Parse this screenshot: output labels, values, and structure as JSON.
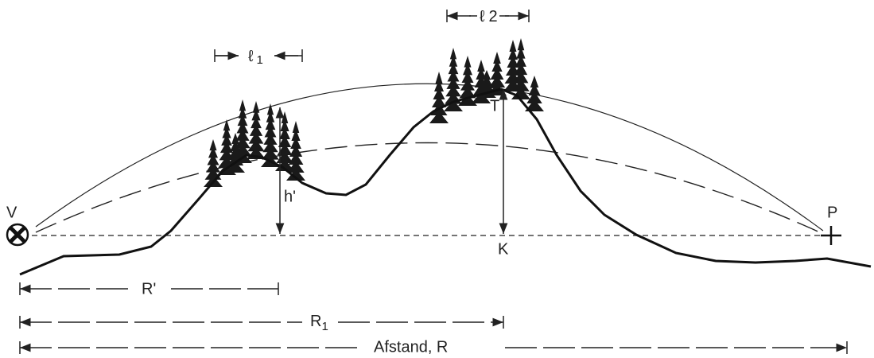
{
  "labels": {
    "v": "V",
    "p": "P",
    "t": "T",
    "k": "K",
    "h": "h'",
    "l1": {
      "symbol": "ℓ",
      "sub": "1"
    },
    "l2": {
      "symbol": "ℓ",
      "sub": "2"
    },
    "r_prime": "R'",
    "r1": {
      "symbol": "R",
      "sub": "1"
    },
    "distance": "Afstand,  R"
  }
}
